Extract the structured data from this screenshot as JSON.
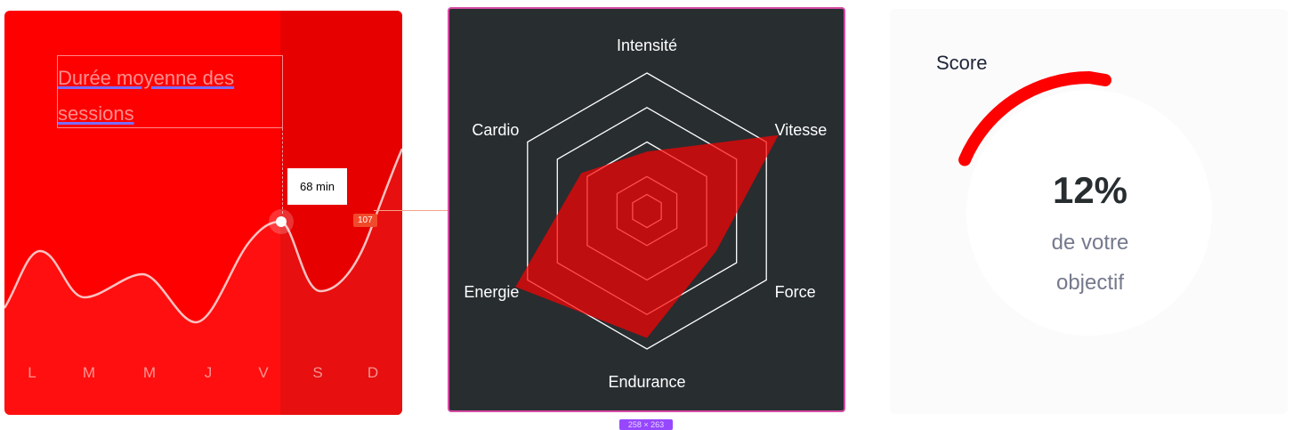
{
  "sessions_card": {
    "title": "Durée moyenne des sessions",
    "tooltip": "68 min",
    "badge": "107",
    "days": [
      "L",
      "M",
      "M",
      "J",
      "V",
      "S",
      "D"
    ],
    "colors": {
      "background": "#ff0000",
      "shade": "#e60000",
      "line": "#ffffff"
    }
  },
  "performance_card": {
    "labels": [
      "Intensité",
      "Vitesse",
      "Force",
      "Endurance",
      "Energie",
      "Cardio"
    ],
    "values": [
      0.43,
      1.1,
      0.58,
      0.92,
      1.1,
      0.55
    ],
    "colors": {
      "background": "#282d30",
      "fill": "#ff0101",
      "grid": "#ffffff"
    },
    "size_badge": "258 × 263"
  },
  "score_card": {
    "title": "Score",
    "value": "12%",
    "subtitle_line1": "de votre",
    "subtitle_line2": "objectif",
    "progress": 0.12,
    "colors": {
      "arc": "#ff0000",
      "center": "#ffffff",
      "background": "#fbfbfb"
    }
  }
}
